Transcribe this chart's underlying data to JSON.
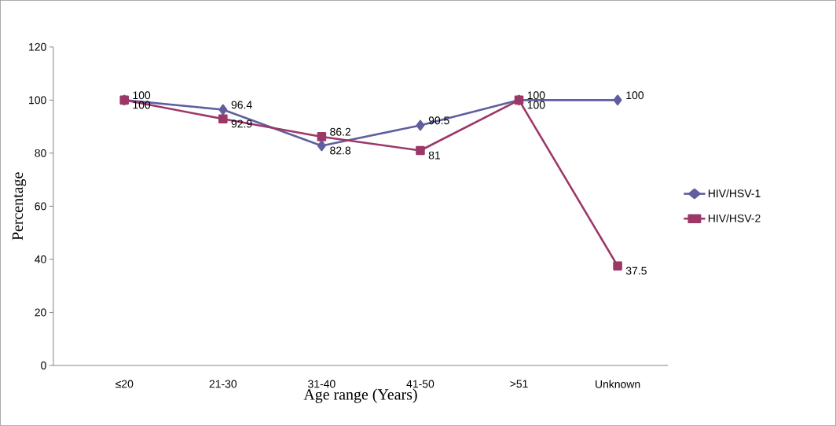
{
  "chart_data": {
    "type": "line",
    "xlabel": "Age range (Years)",
    "ylabel": "Percentage",
    "categories": [
      "≤20",
      "21-30",
      "31-40",
      "41-50",
      ">51",
      "Unknown"
    ],
    "series": [
      {
        "name": "HIV/HSV-1",
        "color": "#5f5f9f",
        "marker": "diamond",
        "values": [
          100,
          96.4,
          82.8,
          90.5,
          100,
          100
        ]
      },
      {
        "name": "HIV/HSV-2",
        "color": "#9c3868",
        "marker": "square",
        "values": [
          100,
          92.9,
          86.2,
          81,
          100,
          37.5
        ]
      }
    ],
    "ylim": [
      0,
      120
    ],
    "yticks": [
      0,
      20,
      40,
      60,
      80,
      100,
      120
    ],
    "data_labels": true,
    "legend": "right",
    "grid": false
  }
}
